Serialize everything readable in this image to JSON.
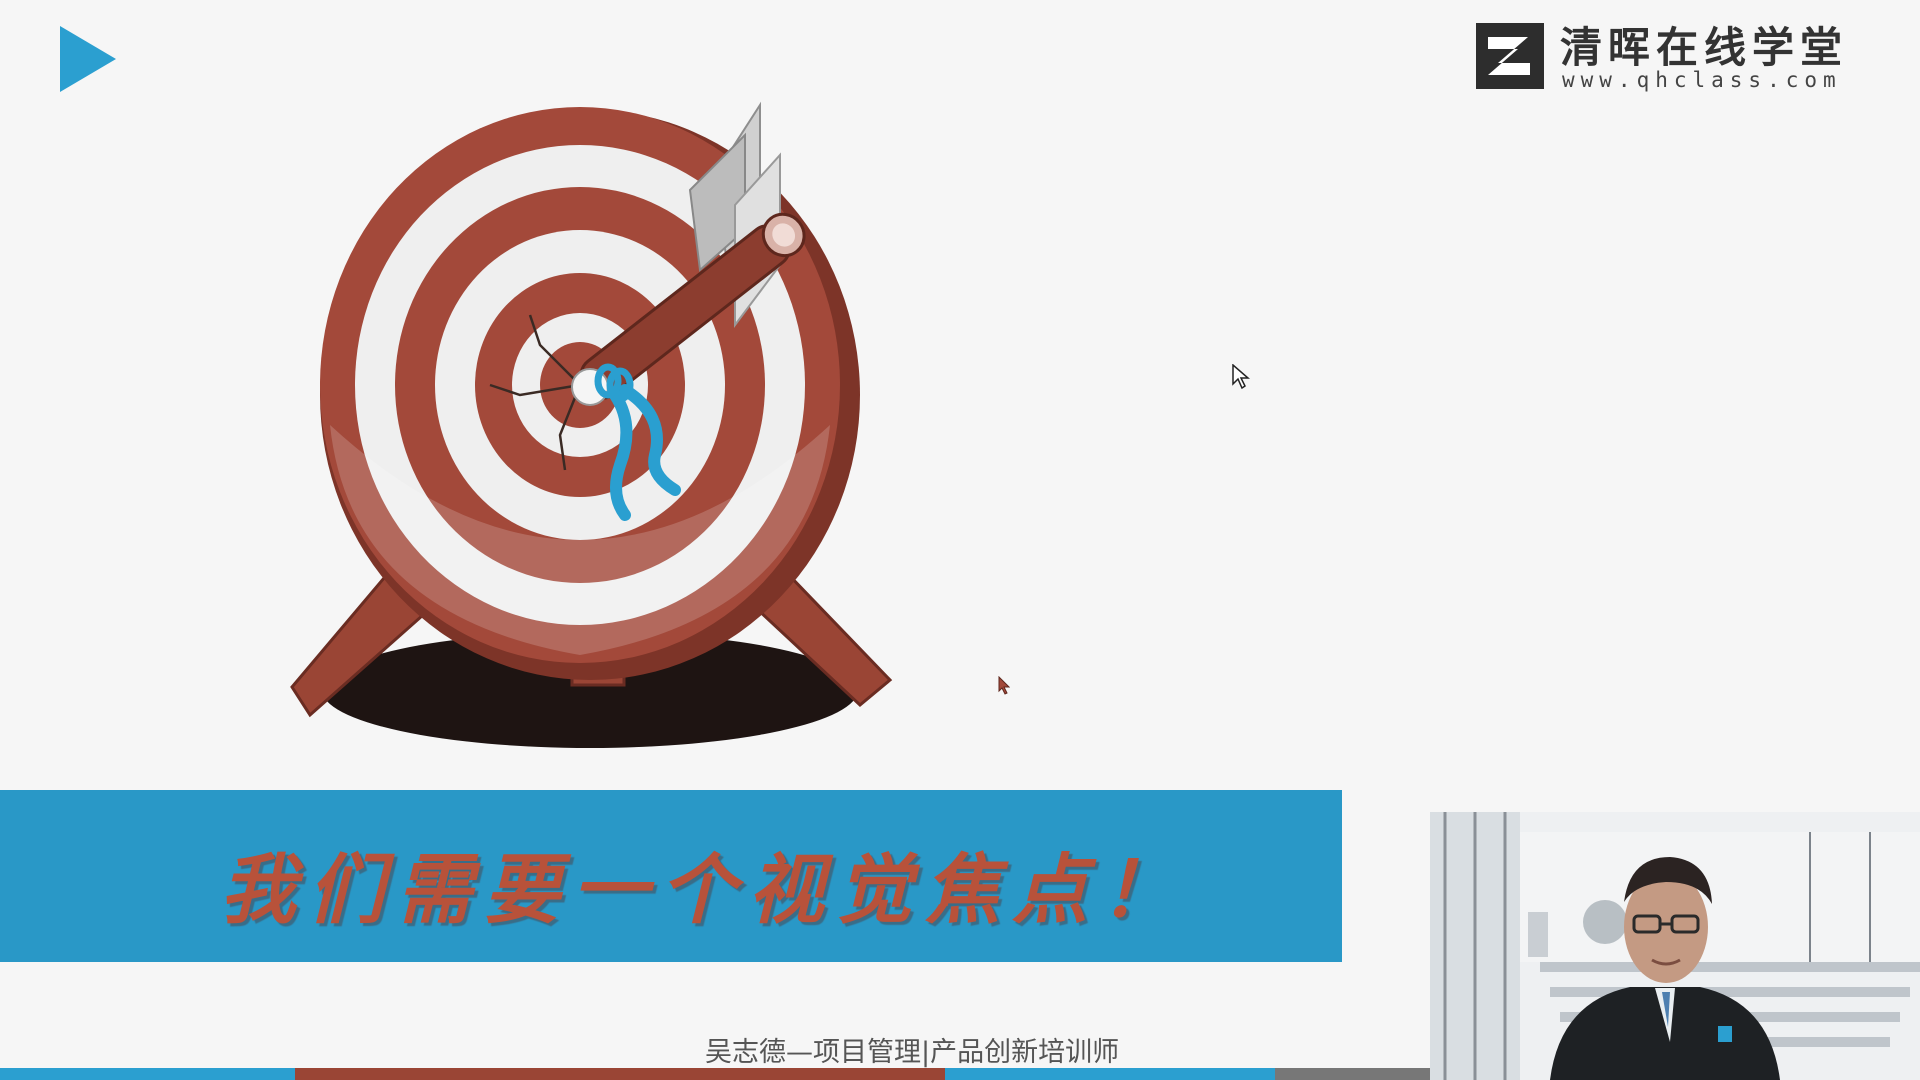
{
  "brand": {
    "name": "清晖在线学堂",
    "url": "www.qhclass.com"
  },
  "banner": {
    "headline": "我们需要一个视觉焦点！"
  },
  "caption": {
    "text": "吴志德—项目管理|产品创新培训师"
  },
  "colors": {
    "accent_blue": "#2998c7",
    "target_red": "#a3493a",
    "headline_red": "#b8523a",
    "ribbon_blue": "#2a9fd0"
  },
  "icons": {
    "play": "play-icon",
    "logo": "qh-logo-icon",
    "target": "archery-target-illustration",
    "cursor": "mouse-cursor-icon"
  }
}
